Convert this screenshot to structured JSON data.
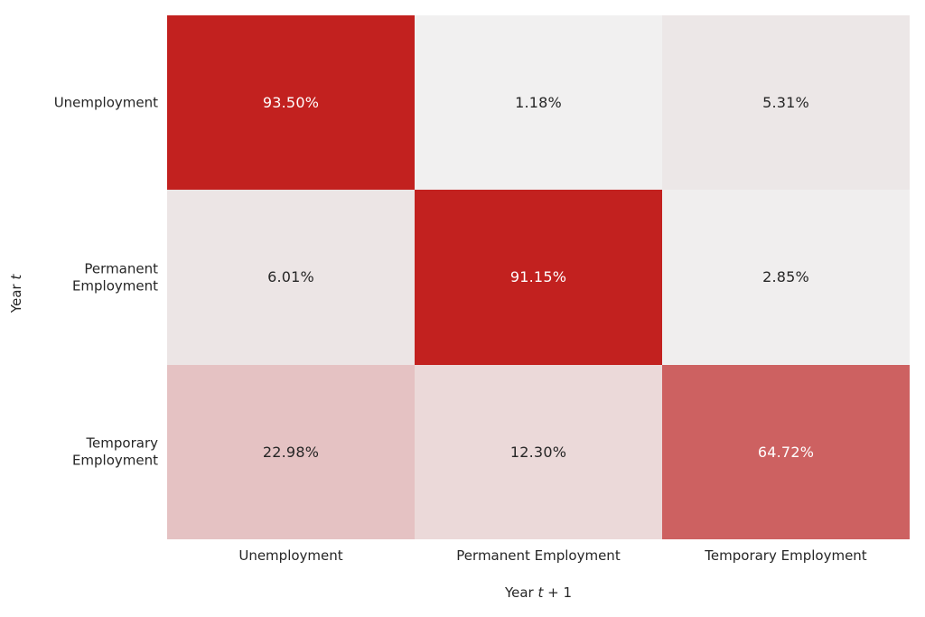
{
  "figure": {
    "background": "#ffffff",
    "tick_text_color": "#262626",
    "annotation_dark_text": "#262626",
    "annotation_light_text": "#ffffff"
  },
  "chart_data": {
    "type": "heatmap",
    "title": "",
    "xlabel": "Year t + 1",
    "ylabel": "Year t",
    "columns": [
      "Unemployment",
      "Permanent Employment",
      "Temporary Employment"
    ],
    "rows": [
      "Unemployment",
      "Permanent Employment",
      "Temporary Employment"
    ],
    "values": [
      [
        93.5,
        1.18,
        5.31
      ],
      [
        6.01,
        91.15,
        2.85
      ],
      [
        22.98,
        12.3,
        64.72
      ]
    ],
    "labels": [
      [
        "93.50%",
        "1.18%",
        "5.31%"
      ],
      [
        "6.01%",
        "91.15%",
        "2.85%"
      ],
      [
        "22.98%",
        "12.30%",
        "64.72%"
      ]
    ],
    "cell_colors": [
      [
        "#c2211f",
        "#f1f0f0",
        "#ece7e7"
      ],
      [
        "#ece5e5",
        "#c2211f",
        "#f0eeee"
      ],
      [
        "#e5c2c3",
        "#ebd9d9",
        "#cd6161"
      ]
    ],
    "cell_text_colors": [
      [
        "#ffffff",
        "#262626",
        "#262626"
      ],
      [
        "#262626",
        "#ffffff",
        "#262626"
      ],
      [
        "#262626",
        "#262626",
        "#ffffff"
      ]
    ],
    "colormap": {
      "low": "#f1f0f0",
      "high": "#c2211f"
    },
    "legend": "none",
    "grid": "off",
    "value_range": [
      0,
      100
    ]
  }
}
